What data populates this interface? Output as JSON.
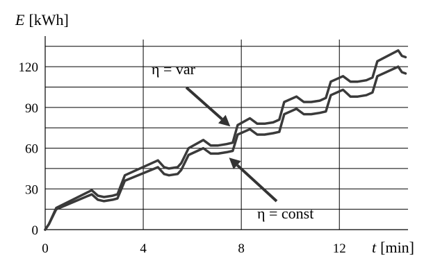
{
  "chart_data": {
    "type": "line",
    "xlabel_symbol": "t",
    "xlabel_unit": "[min]",
    "ylabel_symbol": "E",
    "ylabel_unit": "[kWh]",
    "xlim": [
      0,
      14.8
    ],
    "ylim": [
      0,
      140
    ],
    "x_ticks": [
      0,
      4,
      8,
      12
    ],
    "y_ticks": [
      0,
      30,
      60,
      90,
      120
    ],
    "grid": true,
    "series": [
      {
        "name": "η = var",
        "color": "#3a3a3a",
        "x": [
          0,
          0.15,
          0.45,
          1.9,
          2.15,
          2.4,
          2.75,
          2.95,
          3.25,
          4.6,
          4.85,
          5.05,
          5.4,
          5.55,
          5.85,
          6.45,
          6.75,
          7.05,
          7.4,
          7.65,
          7.85,
          8.35,
          8.65,
          8.95,
          9.3,
          9.55,
          9.75,
          10.25,
          10.55,
          10.85,
          11.2,
          11.45,
          11.65,
          12.15,
          12.45,
          12.75,
          13.1,
          13.35,
          13.55,
          14.4,
          14.55,
          14.7
        ],
        "y": [
          0,
          4,
          16,
          29,
          25,
          24,
          25,
          26,
          40,
          51,
          46,
          45,
          46,
          49,
          60,
          66,
          62,
          62,
          63,
          64,
          77,
          82,
          78,
          78,
          79,
          81,
          94,
          98,
          94,
          94,
          95,
          97,
          109,
          113,
          109,
          109,
          110,
          112,
          124,
          132,
          128,
          127
        ]
      },
      {
        "name": "η = const",
        "color": "#3a3a3a",
        "x": [
          0,
          0.15,
          0.45,
          1.9,
          2.15,
          2.4,
          2.75,
          2.95,
          3.25,
          4.6,
          4.85,
          5.05,
          5.4,
          5.55,
          5.85,
          6.45,
          6.75,
          7.05,
          7.4,
          7.65,
          7.85,
          8.35,
          8.65,
          8.95,
          9.3,
          9.55,
          9.75,
          10.25,
          10.55,
          10.85,
          11.2,
          11.45,
          11.65,
          12.15,
          12.45,
          12.75,
          13.1,
          13.35,
          13.55,
          14.4,
          14.55,
          14.7
        ],
        "y": [
          0,
          4,
          15,
          26,
          22,
          21,
          22,
          23,
          36,
          46,
          41,
          40,
          41,
          44,
          55,
          60,
          56,
          56,
          57,
          58,
          70,
          74,
          70,
          70,
          71,
          72,
          85,
          89,
          85,
          85,
          86,
          87,
          99,
          103,
          98,
          98,
          99,
          101,
          113,
          120,
          116,
          115
        ]
      }
    ],
    "annotations": [
      {
        "text": "η = var",
        "target_series": "η = var",
        "arrow_to": [
          7.55,
          76
        ]
      },
      {
        "text": "η = const",
        "target_series": "η = const",
        "arrow_to": [
          7.5,
          53
        ]
      }
    ]
  }
}
